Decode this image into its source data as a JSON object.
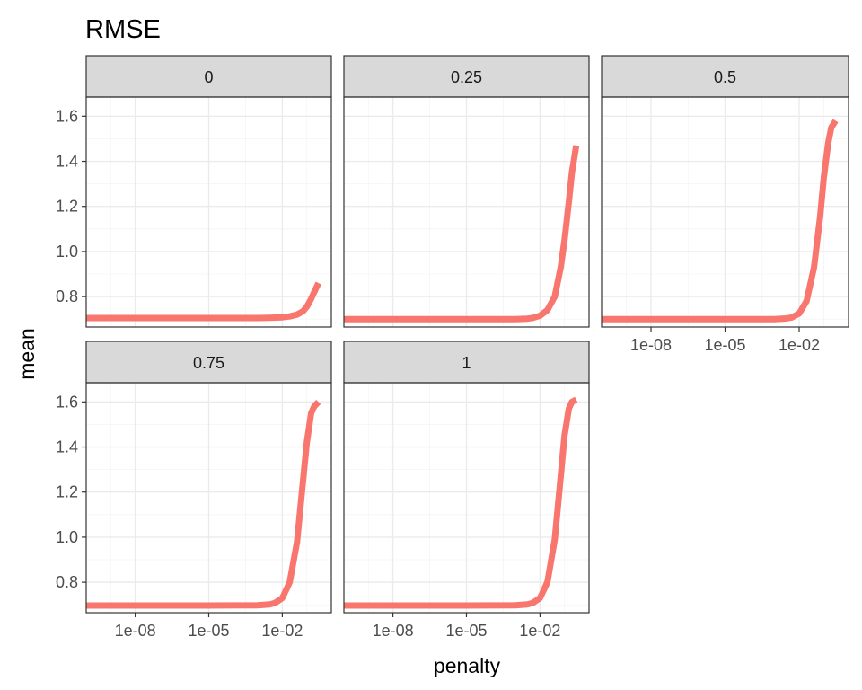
{
  "chart_data": {
    "type": "line",
    "title": "RMSE",
    "xlabel": "penalty",
    "ylabel": "mean",
    "x_scale": "log10",
    "xlim": [
      1e-10,
      1
    ],
    "ylim": [
      0.665,
      1.685
    ],
    "x_ticks": [
      1e-08,
      1e-05,
      0.01
    ],
    "x_tick_labels": [
      "1e-08",
      "1e-05",
      "1e-02"
    ],
    "y_ticks": [
      0.8,
      1.0,
      1.2,
      1.4,
      1.6
    ],
    "y_tick_labels": [
      "0.8",
      "1.0",
      "1.2",
      "1.4",
      "1.6"
    ],
    "facet_strip_color": "#d9d9d9",
    "grid": true,
    "line_color": "#f8766d",
    "facets": [
      {
        "label": "0",
        "x": [
          1e-10,
          1e-08,
          1e-05,
          0.001,
          0.003,
          0.01,
          0.02,
          0.04,
          0.07,
          0.1,
          0.15,
          0.2,
          0.3
        ],
        "y": [
          0.705,
          0.705,
          0.705,
          0.705,
          0.706,
          0.708,
          0.712,
          0.72,
          0.735,
          0.755,
          0.79,
          0.82,
          0.86
        ]
      },
      {
        "label": "0.25",
        "x": [
          1e-10,
          1e-08,
          1e-05,
          0.001,
          0.003,
          0.005,
          0.01,
          0.02,
          0.04,
          0.07,
          0.1,
          0.15,
          0.2,
          0.3
        ],
        "y": [
          0.7,
          0.7,
          0.7,
          0.7,
          0.702,
          0.705,
          0.715,
          0.74,
          0.8,
          0.93,
          1.05,
          1.22,
          1.35,
          1.47
        ]
      },
      {
        "label": "0.5",
        "x": [
          1e-10,
          1e-08,
          1e-05,
          0.001,
          0.003,
          0.005,
          0.01,
          0.02,
          0.04,
          0.07,
          0.1,
          0.15,
          0.2,
          0.3
        ],
        "y": [
          0.7,
          0.7,
          0.7,
          0.7,
          0.703,
          0.707,
          0.725,
          0.78,
          0.93,
          1.15,
          1.33,
          1.48,
          1.55,
          1.58
        ]
      },
      {
        "label": "0.75",
        "x": [
          1e-10,
          1e-08,
          1e-05,
          0.001,
          0.003,
          0.005,
          0.01,
          0.02,
          0.04,
          0.07,
          0.1,
          0.15,
          0.2,
          0.3
        ],
        "y": [
          0.697,
          0.697,
          0.697,
          0.698,
          0.702,
          0.708,
          0.73,
          0.8,
          0.98,
          1.25,
          1.42,
          1.55,
          1.58,
          1.6
        ]
      },
      {
        "label": "1",
        "x": [
          1e-10,
          1e-08,
          1e-05,
          0.001,
          0.003,
          0.005,
          0.01,
          0.02,
          0.04,
          0.07,
          0.1,
          0.15,
          0.2,
          0.3
        ],
        "y": [
          0.697,
          0.697,
          0.697,
          0.698,
          0.702,
          0.708,
          0.73,
          0.8,
          0.99,
          1.27,
          1.45,
          1.57,
          1.6,
          1.61
        ]
      }
    ]
  }
}
